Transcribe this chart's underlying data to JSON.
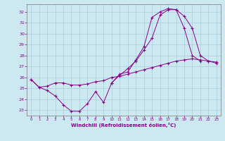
{
  "xlabel": "Windchill (Refroidissement éolien,°C)",
  "xlim": [
    -0.5,
    23.5
  ],
  "ylim": [
    22.5,
    32.7
  ],
  "yticks": [
    23,
    24,
    25,
    26,
    27,
    28,
    29,
    30,
    31,
    32
  ],
  "xticks": [
    0,
    1,
    2,
    3,
    4,
    5,
    6,
    7,
    8,
    9,
    10,
    11,
    12,
    13,
    14,
    15,
    16,
    17,
    18,
    19,
    20,
    21,
    22,
    23
  ],
  "bg_color": "#cce8f0",
  "line_color": "#880088",
  "grid_color": "#aaccdd",
  "curves": [
    {
      "x": [
        0,
        1,
        2,
        3,
        4,
        5,
        6,
        7,
        8,
        9,
        10,
        11,
        12,
        13,
        14,
        15,
        16,
        17,
        18,
        19,
        20,
        21
      ],
      "y": [
        25.8,
        25.1,
        24.8,
        24.3,
        23.5,
        22.9,
        22.9,
        23.6,
        24.7,
        23.7,
        25.5,
        26.3,
        26.5,
        27.6,
        28.8,
        31.5,
        32.0,
        32.3,
        32.2,
        30.5,
        28.0,
        27.5
      ]
    },
    {
      "x": [
        10,
        11,
        12,
        13,
        14,
        15,
        16,
        17,
        18,
        19,
        20,
        21,
        22,
        23
      ],
      "y": [
        25.5,
        26.2,
        26.8,
        27.5,
        28.5,
        29.6,
        31.7,
        32.2,
        32.2,
        31.6,
        30.5,
        28.0,
        27.5,
        27.3
      ]
    },
    {
      "x": [
        0,
        1,
        2,
        3,
        4,
        5,
        6,
        7,
        8,
        9,
        10,
        11,
        12,
        13,
        14,
        15,
        16,
        17,
        18,
        19,
        20,
        21,
        22,
        23
      ],
      "y": [
        25.8,
        25.1,
        25.2,
        25.5,
        25.5,
        25.3,
        25.3,
        25.4,
        25.6,
        25.7,
        26.0,
        26.1,
        26.3,
        26.5,
        26.7,
        26.9,
        27.1,
        27.3,
        27.5,
        27.6,
        27.7,
        27.6,
        27.5,
        27.4
      ]
    }
  ]
}
